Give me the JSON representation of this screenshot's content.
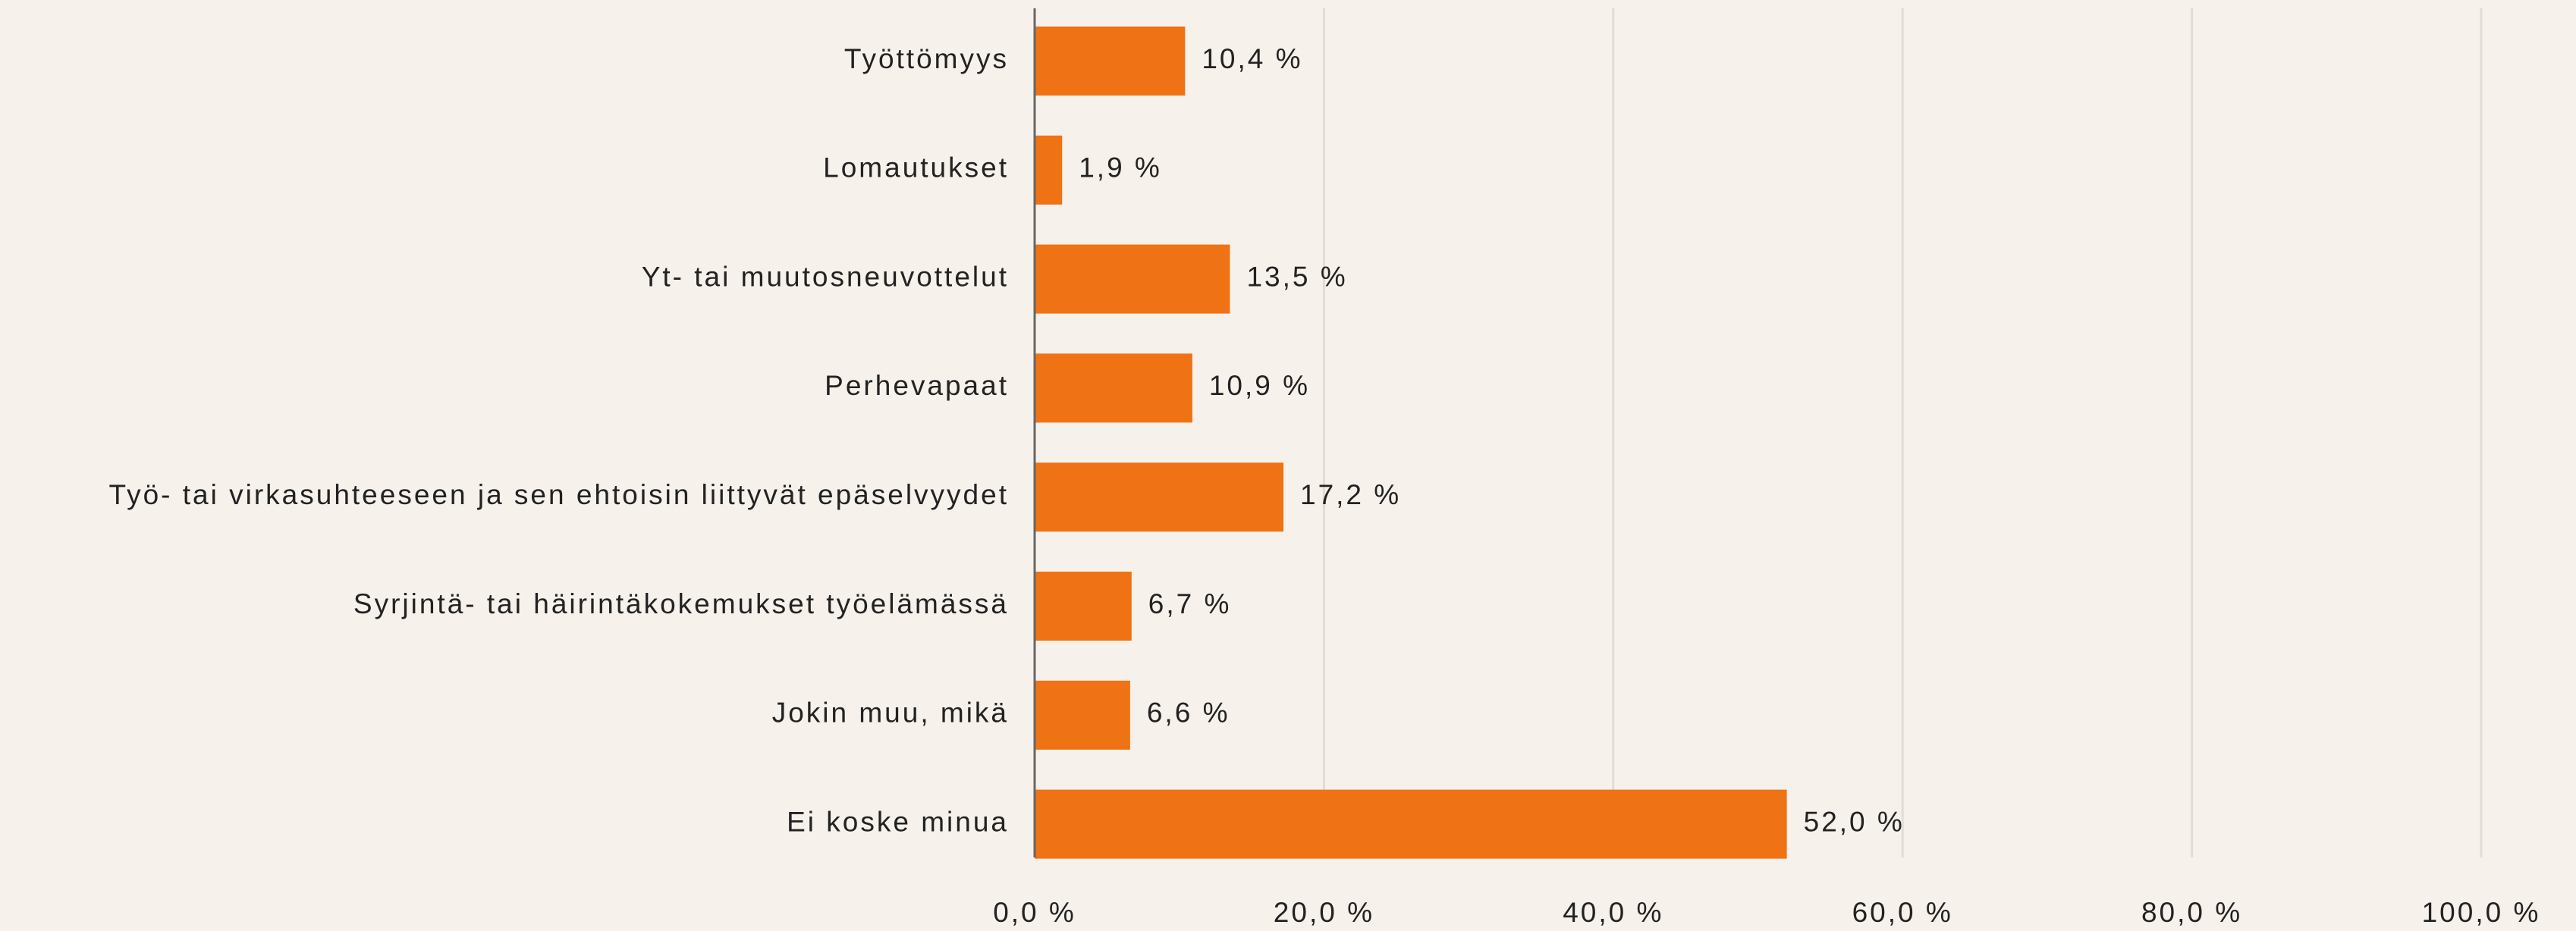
{
  "chart_data": {
    "type": "bar",
    "orientation": "horizontal",
    "categories": [
      "Työttömyys",
      "Lomautukset",
      "Yt- tai muutosneuvottelut",
      "Perhevapaat",
      "Työ- tai virkasuhteeseen ja sen ehtoisin liittyvät epäselvyydet",
      "Syrjintä- tai häirintäkokemukset työelämässä",
      "Jokin muu, mikä",
      "Ei koske minua"
    ],
    "values": [
      10.4,
      1.9,
      13.5,
      10.9,
      17.2,
      6.7,
      6.6,
      52.0
    ],
    "value_labels": [
      "10,4 %",
      "1,9 %",
      "13,5 %",
      "10,9 %",
      "17,2 %",
      "6,7 %",
      "6,6 %",
      "52,0 %"
    ],
    "color": "#ef7214",
    "xlim": [
      0,
      100
    ],
    "xticks": [
      {
        "value": 0,
        "label": "0,0 %"
      },
      {
        "value": 20,
        "label": "20,0 %"
      },
      {
        "value": 40,
        "label": "40,0 %"
      },
      {
        "value": 60,
        "label": "60,0 %"
      },
      {
        "value": 80,
        "label": "80,0 %"
      },
      {
        "value": 100,
        "label": "100,0 %"
      }
    ],
    "grid": true
  }
}
